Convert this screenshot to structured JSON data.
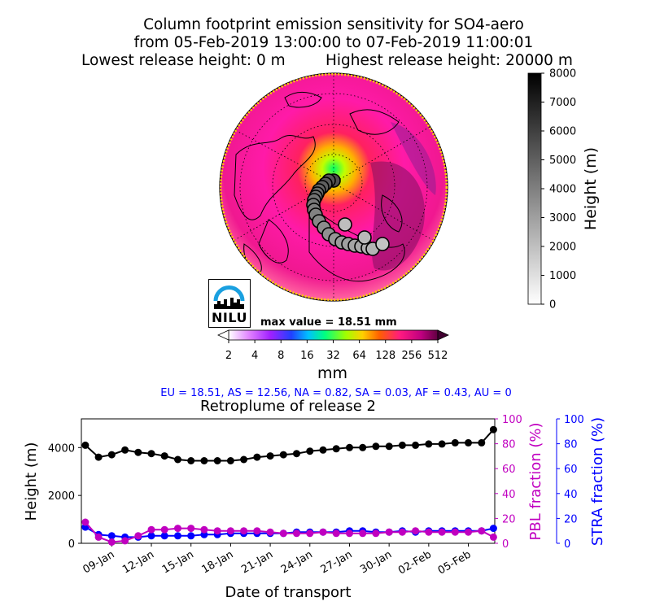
{
  "header": {
    "title_line1": "Column footprint emission sensitivity for SO4-aero",
    "title_line2": "from 05-Feb-2019 13:00:00 to 07-Feb-2019 11:00:01",
    "lowest_release": "Lowest release height: 0 m",
    "highest_release": "Highest release height: 20000 m"
  },
  "logo": {
    "text": "NILU"
  },
  "map": {
    "max_value_label": "max value = 18.51 mm",
    "colorbar_ticks": [
      "2",
      "4",
      "8",
      "16",
      "32",
      "64",
      "128",
      "256",
      "512"
    ],
    "colorbar_unit": "mm",
    "height_colorbar_ticks": [
      "0",
      "1000",
      "2000",
      "3000",
      "4000",
      "5000",
      "6000",
      "7000",
      "8000"
    ],
    "height_colorbar_label": "Height (m)"
  },
  "stats_line": "EU = 18.51,  AS = 12.56,  NA = 0.82,  SA = 0.03,  AF = 0.43,  AU = 0",
  "chart_data": {
    "type": "line",
    "title": "Retroplume of release 2",
    "xlabel": "Date of transport",
    "ylabel": "Height (m)",
    "ylabel_right1": "PBL fraction (%)",
    "ylabel_right2": "STRA fraction (%)",
    "x_tick_labels": [
      "05-Feb",
      "02-Feb",
      "30-Jan",
      "27-Jan",
      "24-Jan",
      "21-Jan",
      "18-Jan",
      "15-Jan",
      "12-Jan",
      "09-Jan"
    ],
    "x_ticks_days_before_release": [
      0,
      3,
      6,
      9,
      12,
      15,
      18,
      21,
      24,
      27
    ],
    "ylim": [
      0,
      5200
    ],
    "yticks": [
      0,
      2000,
      4000
    ],
    "ylim_right": [
      0,
      100
    ],
    "yticks_right": [
      0,
      20,
      40,
      60,
      80,
      100
    ],
    "x_days_before_release": [
      -1.9,
      -1,
      0,
      1,
      2,
      3,
      4,
      5,
      6,
      7,
      8,
      9,
      10,
      11,
      12,
      13,
      14,
      15,
      16,
      17,
      18,
      19,
      20,
      21,
      22,
      23,
      24,
      25,
      26,
      27,
      28,
      29
    ],
    "series": [
      {
        "name": "Height (m)",
        "axis": "left",
        "color": "#000000",
        "values": [
          4750,
          4200,
          4200,
          4200,
          4150,
          4150,
          4100,
          4100,
          4050,
          4050,
          4000,
          4000,
          3950,
          3900,
          3850,
          3750,
          3700,
          3650,
          3600,
          3500,
          3450,
          3450,
          3450,
          3450,
          3500,
          3650,
          3750,
          3800,
          3900,
          3700,
          3600,
          4100
        ]
      },
      {
        "name": "PBL fraction (%)",
        "axis": "right",
        "color": "#c000c0",
        "values": [
          5,
          10,
          9,
          9,
          9,
          9,
          10,
          9,
          9,
          8,
          8,
          8,
          8,
          9,
          8,
          8,
          8,
          9,
          10,
          10,
          10,
          10,
          11,
          12,
          12,
          11,
          11,
          6,
          2,
          1,
          5,
          17
        ]
      },
      {
        "name": "STRA fraction (%)",
        "axis": "right",
        "color": "#0000ff",
        "values": [
          12,
          10,
          10,
          10,
          10,
          10,
          9,
          10,
          9,
          9,
          10,
          10,
          9,
          9,
          9,
          9,
          8,
          8,
          8,
          8,
          8,
          7,
          7,
          6,
          6,
          6,
          6,
          5,
          5,
          6,
          7,
          13
        ]
      }
    ]
  }
}
